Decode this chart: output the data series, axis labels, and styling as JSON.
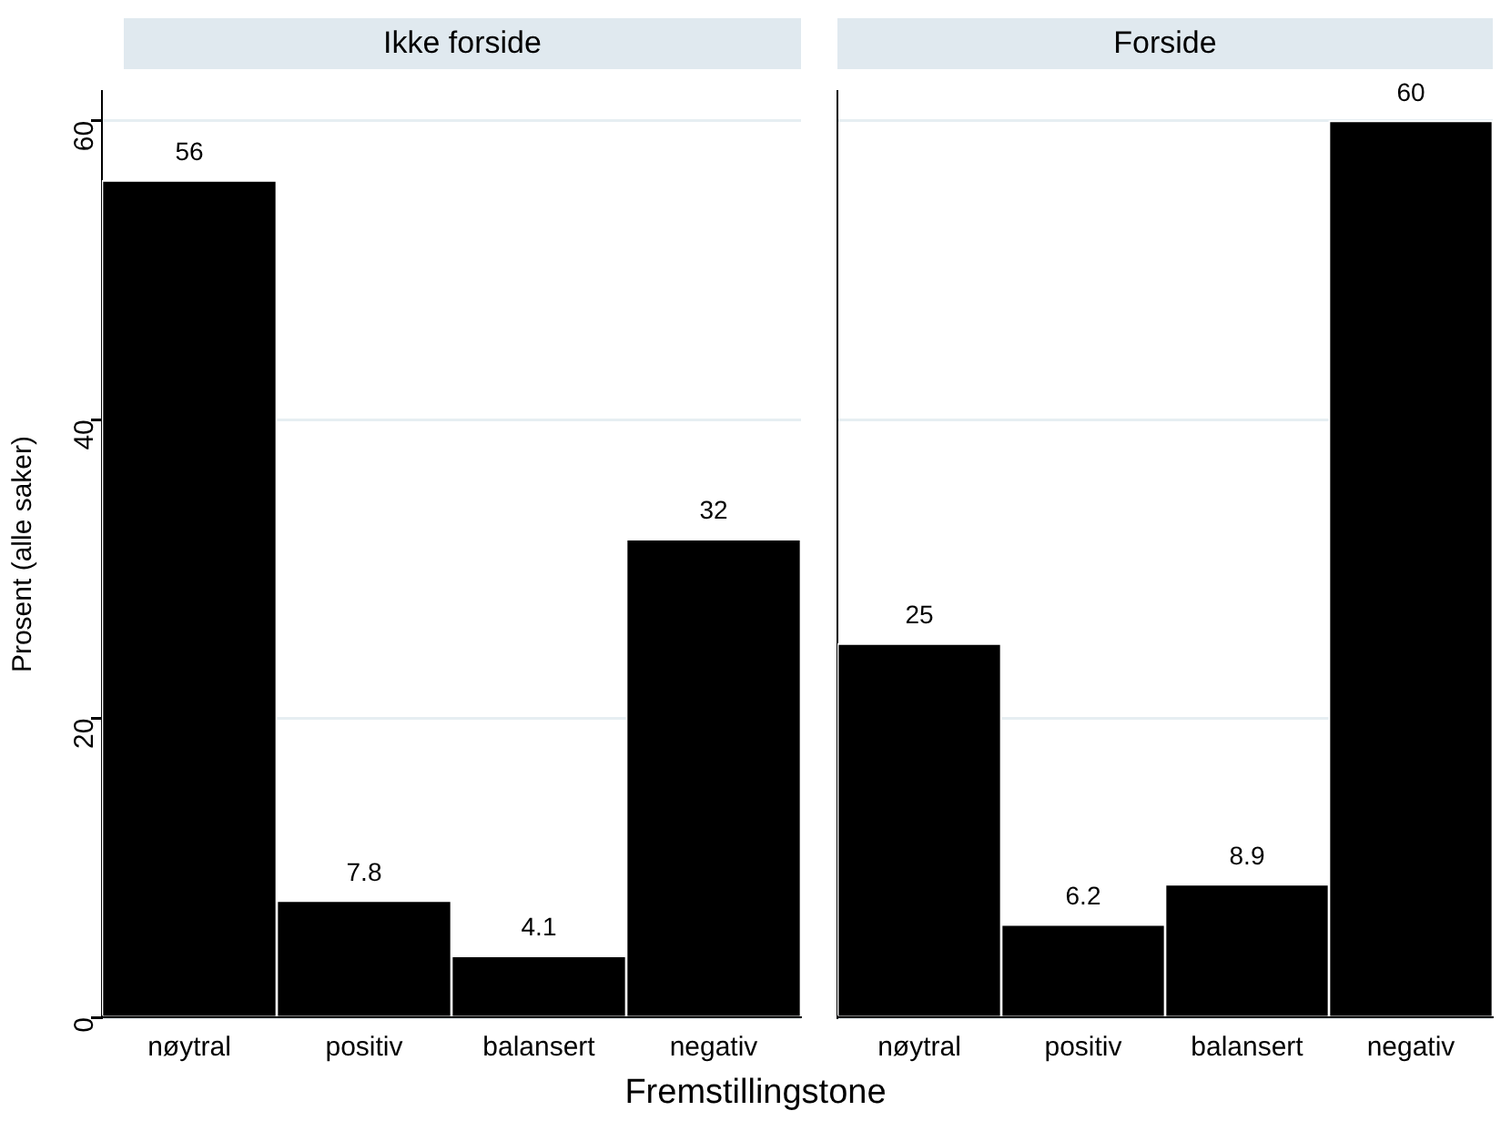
{
  "chart_data": [
    {
      "type": "bar",
      "title": "Ikke forside",
      "ylabel": "Prosent (alle saker)",
      "xlabel": "Fremstillingstone",
      "categories": [
        "nøytral",
        "positiv",
        "balansert",
        "negativ"
      ],
      "values": [
        56,
        7.8,
        4.1,
        32
      ],
      "color": "#000000",
      "ylim": [
        0,
        62
      ],
      "yticks": [
        0,
        20,
        40,
        60
      ],
      "grid": "y",
      "data_labels": true,
      "legend": false
    },
    {
      "type": "bar",
      "title": "Forside",
      "categories": [
        "nøytral",
        "positiv",
        "balansert",
        "negativ"
      ],
      "values": [
        25,
        6.2,
        8.9,
        60
      ],
      "color": "#000000",
      "ylim": [
        0,
        62
      ],
      "yticks": [
        0,
        20,
        40,
        60
      ],
      "grid": "y",
      "data_labels": true,
      "legend": false,
      "tick_labels": "x"
    }
  ]
}
